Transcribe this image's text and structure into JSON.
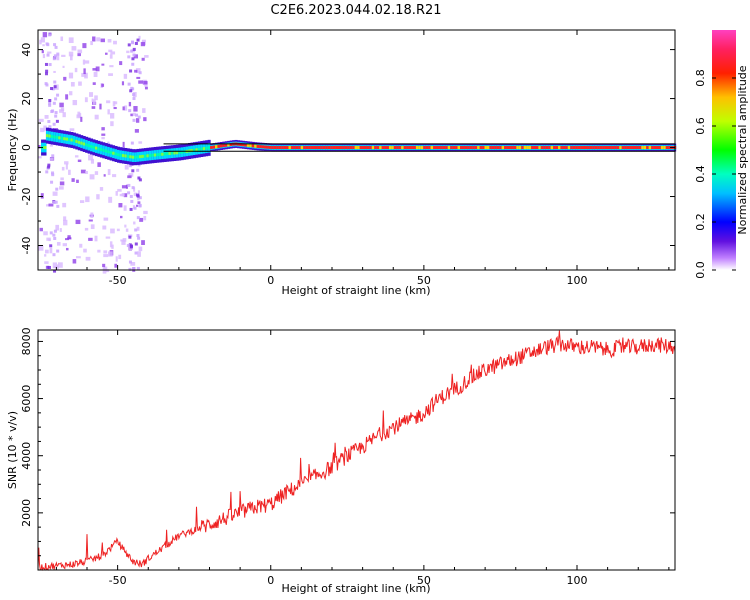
{
  "figure": {
    "title": "C2E6.2023.044.02.18.R21"
  },
  "chart_data": [
    {
      "type": "heatmap",
      "xlabel": "Height of straight line (km)",
      "ylabel": "Frequency (Hz)",
      "xlim": [
        -76,
        132
      ],
      "ylim": [
        -50,
        48
      ],
      "x_ticks": [
        -50,
        0,
        50,
        100
      ],
      "y_ticks": [
        -40,
        -20,
        0,
        20,
        40
      ],
      "colorbar": {
        "label": "Normalized spectral amplitude",
        "range": [
          0,
          1
        ],
        "ticks": [
          "0.0",
          "0.2",
          "0.4",
          "0.6",
          "0.8"
        ],
        "colormap": "rainbow (white-violet-blue-cyan-green-yellow-red-magenta)"
      },
      "signal_track": [
        {
          "x": -74,
          "freq": 5
        },
        {
          "x": -65,
          "freq": 3
        },
        {
          "x": -58,
          "freq": 0
        },
        {
          "x": -50,
          "freq": -3
        },
        {
          "x": -45,
          "freq": -4
        },
        {
          "x": -38,
          "freq": -3
        },
        {
          "x": -30,
          "freq": -2
        },
        {
          "x": -20,
          "freq": 0
        },
        {
          "x": -12,
          "freq": 1.5
        },
        {
          "x": -5,
          "freq": 0.5
        },
        {
          "x": 0,
          "freq": 0
        },
        {
          "x": 50,
          "freq": 0
        },
        {
          "x": 100,
          "freq": 0
        },
        {
          "x": 132,
          "freq": 0
        }
      ],
      "reference_lines_hz": [
        1.5,
        -1.5
      ]
    },
    {
      "type": "line",
      "xlabel": "Height of straight line (km)",
      "ylabel": "SNR (10 * v/v)",
      "xlim": [
        -76,
        132
      ],
      "ylim": [
        0,
        8400
      ],
      "x_ticks": [
        -50,
        0,
        50,
        100
      ],
      "y_ticks": [
        2000,
        4000,
        6000,
        8000
      ],
      "series_color": "#ee2222",
      "series": [
        {
          "x": [
            -76,
            -70,
            -65,
            -60,
            -55,
            -52,
            -50,
            -48,
            -45,
            -42,
            -40,
            -35,
            -30,
            -25,
            -20,
            -15,
            -10,
            -5,
            0,
            5,
            10,
            15,
            20,
            25,
            30,
            35,
            40,
            45,
            50,
            55,
            60,
            65,
            70,
            75,
            80,
            85,
            90,
            95,
            100,
            105,
            110,
            115,
            120,
            125,
            132
          ],
          "values": [
            100,
            150,
            200,
            300,
            500,
            800,
            1000,
            700,
            300,
            200,
            400,
            800,
            1200,
            1400,
            1600,
            1800,
            2000,
            2200,
            2300,
            2700,
            3000,
            3300,
            3600,
            4000,
            4300,
            4700,
            5000,
            5200,
            5500,
            6000,
            6300,
            6700,
            7000,
            7200,
            7400,
            7600,
            7800,
            7900,
            7800,
            7800,
            7700,
            7800,
            7800,
            7900,
            7800
          ]
        }
      ]
    }
  ]
}
